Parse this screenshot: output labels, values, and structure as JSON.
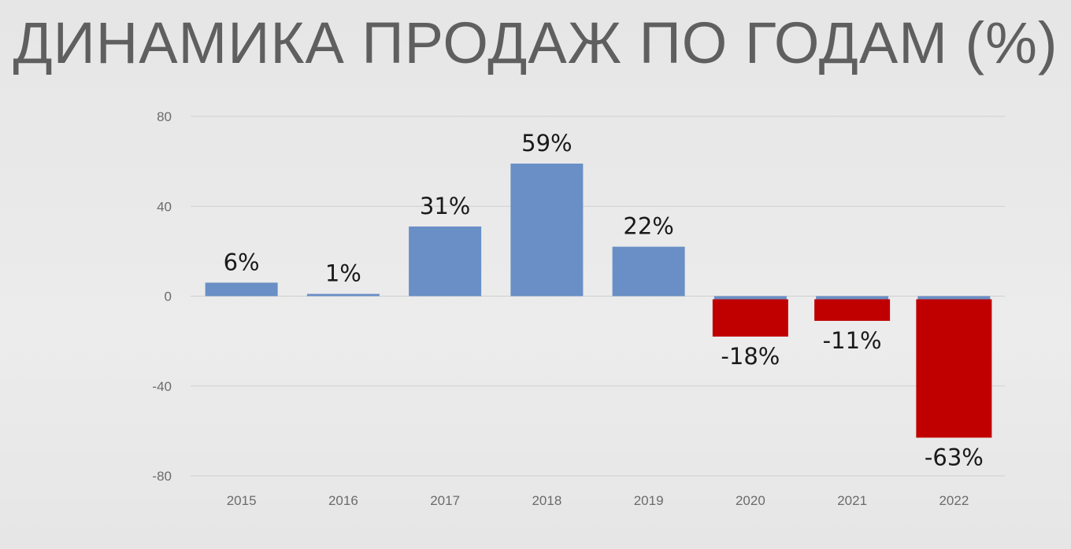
{
  "title": "ДИНАМИКА ПРОДАЖ ПО ГОДАМ (%)",
  "chart_data": {
    "type": "bar",
    "title": "ДИНАМИКА ПРОДАЖ ПО ГОДАМ (%)",
    "xlabel": "",
    "ylabel": "",
    "categories": [
      "2015",
      "2016",
      "2017",
      "2018",
      "2019",
      "2020",
      "2021",
      "2022"
    ],
    "values": [
      6,
      1,
      31,
      59,
      22,
      -18,
      -11,
      -63
    ],
    "data_labels": [
      "6%",
      "1%",
      "31%",
      "59%",
      "22%",
      "-18%",
      "-11%",
      "-63%"
    ],
    "ylim": [
      -80,
      80
    ],
    "yticks": [
      80,
      40,
      0,
      -40,
      -80
    ],
    "ytick_labels": [
      "80",
      "40",
      "0",
      "-40",
      "-80"
    ],
    "grid": true,
    "legend": "none",
    "colors": {
      "positive": "#6a8fc6",
      "negative": "#c00000",
      "negative_cap": "#6a8fc6",
      "gridline": "#cfcfcf",
      "title": "#5f5f5f"
    }
  }
}
